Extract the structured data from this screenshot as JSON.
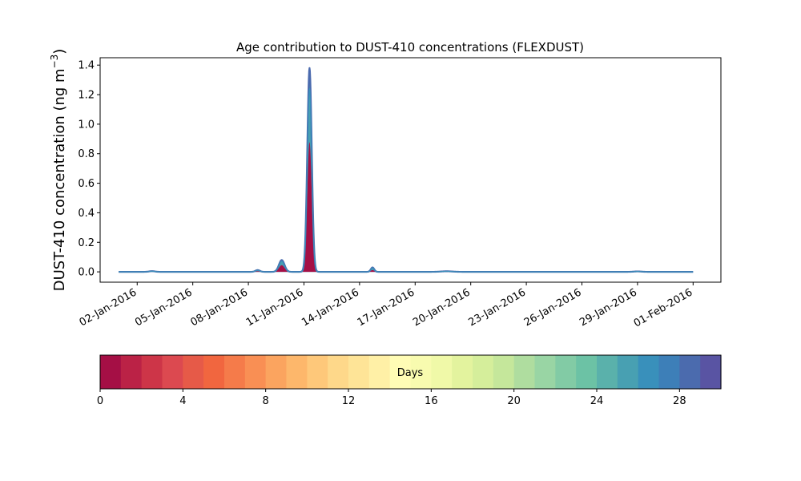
{
  "chart_data": {
    "type": "area",
    "title": "Age contribution to DUST-410 concentrations (FLEXDUST)",
    "ylabel_main": "DUST-410 concentration (ng m",
    "ylabel_sup": "−3",
    "ylabel_close": ")",
    "xlabel": "",
    "x_start": "01-Jan-2016",
    "x_end": "31-Jan-2016",
    "xlim": [
      -1.0,
      32.5
    ],
    "ylim": [
      -0.07,
      1.45
    ],
    "xticks": [
      {
        "day": 1,
        "label": "02-Jan-2016"
      },
      {
        "day": 4,
        "label": "05-Jan-2016"
      },
      {
        "day": 7,
        "label": "08-Jan-2016"
      },
      {
        "day": 10,
        "label": "11-Jan-2016"
      },
      {
        "day": 13,
        "label": "14-Jan-2016"
      },
      {
        "day": 16,
        "label": "17-Jan-2016"
      },
      {
        "day": 19,
        "label": "20-Jan-2016"
      },
      {
        "day": 22,
        "label": "23-Jan-2016"
      },
      {
        "day": 25,
        "label": "26-Jan-2016"
      },
      {
        "day": 28,
        "label": "29-Jan-2016"
      },
      {
        "day": 31,
        "label": "01-Feb-2016"
      }
    ],
    "yticks": [
      {
        "value": 0.0,
        "label": "0.0"
      },
      {
        "value": 0.2,
        "label": "0.2"
      },
      {
        "value": 0.4,
        "label": "0.4"
      },
      {
        "value": 0.6,
        "label": "0.6"
      },
      {
        "value": 0.8,
        "label": "0.8"
      },
      {
        "value": 1.0,
        "label": "1.0"
      },
      {
        "value": 1.2,
        "label": "1.2"
      },
      {
        "value": 1.4,
        "label": "1.4"
      }
    ],
    "grid": false,
    "events": [
      {
        "center": 1.8,
        "width": 0.15,
        "total": 0.005,
        "fresh": 0.0
      },
      {
        "center": 7.5,
        "width": 0.12,
        "total": 0.012,
        "fresh": 0.004
      },
      {
        "center": 8.8,
        "width": 0.15,
        "total": 0.08,
        "fresh": 0.045
      },
      {
        "center": 10.3,
        "width": 0.12,
        "total": 1.38,
        "fresh": 0.88
      },
      {
        "center": 13.7,
        "width": 0.09,
        "total": 0.03,
        "fresh": 0.012
      },
      {
        "center": 17.7,
        "width": 0.3,
        "total": 0.004,
        "fresh": 0.0
      },
      {
        "center": 28.0,
        "width": 0.2,
        "total": 0.003,
        "fresh": 0.0
      }
    ],
    "colorbar": {
      "label": "Days",
      "range": [
        0,
        30
      ],
      "ticks": [
        {
          "value": 0,
          "label": "0"
        },
        {
          "value": 4,
          "label": "4"
        },
        {
          "value": 8,
          "label": "8"
        },
        {
          "value": 12,
          "label": "12"
        },
        {
          "value": 16,
          "label": "16"
        },
        {
          "value": 20,
          "label": "20"
        },
        {
          "value": 24,
          "label": "24"
        },
        {
          "value": 28,
          "label": "28"
        }
      ],
      "colors": [
        "#a50f45",
        "#bb2246",
        "#cd3548",
        "#dc4950",
        "#e65a48",
        "#f1663f",
        "#f57b4a",
        "#f98f54",
        "#fba45f",
        "#fdb76b",
        "#fec87a",
        "#fed88a",
        "#fee497",
        "#fff0a6",
        "#fffcb5",
        "#f8fbaf",
        "#f0f9a8",
        "#e3f39e",
        "#d5ee9b",
        "#c5e79b",
        "#afdd9f",
        "#99d5a4",
        "#82cba5",
        "#6cc2a5",
        "#5ab1ab",
        "#48a0b2",
        "#3990bb",
        "#3d7fb8",
        "#4b6bae",
        "#5954a3"
      ]
    }
  }
}
